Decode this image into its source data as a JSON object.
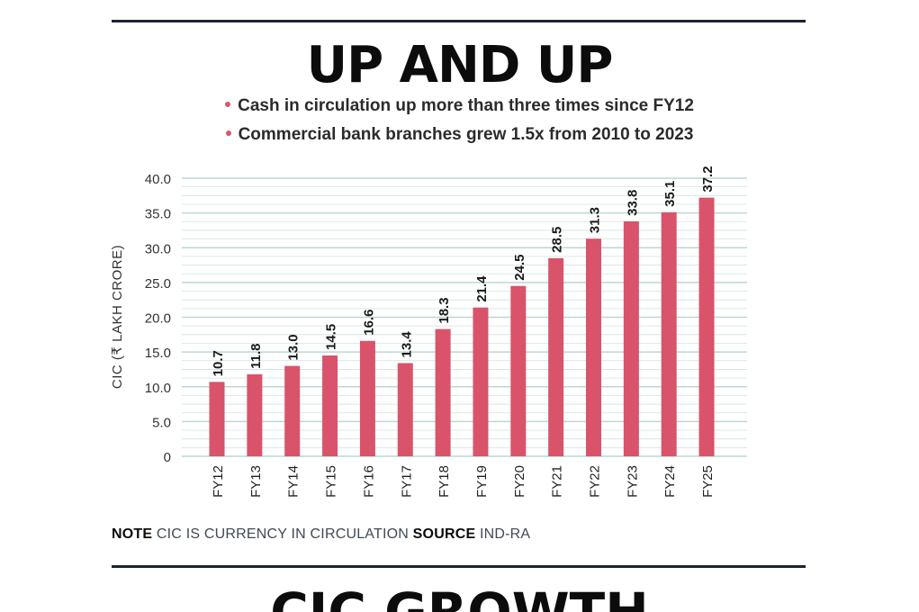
{
  "header": {
    "title": "UP AND UP",
    "bullets": [
      "Cash in circulation up more than three times since FY12",
      "Commercial bank branches grew 1.5x from 2010 to 2023"
    ]
  },
  "colors": {
    "bar": "#d9536a",
    "grid": "#bcd8d2",
    "rule": "#1c2430",
    "bullet": "#d45a6a"
  },
  "chart_data": {
    "type": "bar",
    "title": "UP AND UP",
    "xlabel": "",
    "ylabel": "CIC (₹ LAKH CRORE)",
    "ylim": [
      0,
      40
    ],
    "yticks": [
      "0",
      "5.0",
      "10.0",
      "15.0",
      "20.0",
      "25.0",
      "30.0",
      "35.0",
      "40.0"
    ],
    "ytick_values": [
      0,
      5,
      10,
      15,
      20,
      25,
      30,
      35,
      40
    ],
    "categories": [
      "FY12",
      "FY13",
      "FY14",
      "FY15",
      "FY16",
      "FY17",
      "FY18",
      "FY19",
      "FY20",
      "FY21",
      "FY22",
      "FY23",
      "FY24",
      "FY25"
    ],
    "values": [
      10.7,
      11.8,
      13.0,
      14.5,
      16.6,
      13.4,
      18.3,
      21.4,
      24.5,
      28.5,
      31.3,
      33.8,
      35.1,
      37.2
    ],
    "value_labels": [
      "10.7",
      "11.8",
      "13.0",
      "14.5",
      "16.6",
      "13.4",
      "18.3",
      "21.4",
      "24.5",
      "28.5",
      "31.3",
      "33.8",
      "35.1",
      "37.2"
    ],
    "grid": true
  },
  "footer": {
    "note_label": "NOTE",
    "note_text": "CIC IS CURRENCY IN CIRCULATION",
    "source_label": "SOURCE",
    "source_text": "IND-RA"
  },
  "next_section": {
    "title": "CIC GROWTH"
  }
}
